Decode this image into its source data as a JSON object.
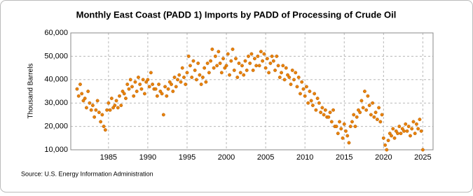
{
  "chart_data": {
    "type": "scatter",
    "title": "Monthly East Coast (PADD 1) Imports by PADD of Processing of Crude Oil",
    "y_label": "Thousand Barrels",
    "source": "Source: U.S. Energy Information Administration",
    "color": "#e8820c",
    "grid": true,
    "xlim": [
      1980.2,
      2026.3
    ],
    "xticks": [
      1985,
      1990,
      1995,
      2000,
      2005,
      2010,
      2015,
      2020,
      2025
    ],
    "ylim": [
      10000,
      60000
    ],
    "yticks": [
      {
        "value": 10000,
        "label": "10,000"
      },
      {
        "value": 20000,
        "label": "20,000"
      },
      {
        "value": 30000,
        "label": "30,000"
      },
      {
        "value": 40000,
        "label": "40,000"
      },
      {
        "value": 50000,
        "label": "50,000"
      },
      {
        "value": 60000,
        "label": "60,000"
      }
    ],
    "x": [
      1981,
      1981.2,
      1981.4,
      1981.6,
      1981.8,
      1982,
      1982.2,
      1982.4,
      1982.6,
      1982.8,
      1983,
      1983.2,
      1983.4,
      1983.6,
      1983.8,
      1984,
      1984.2,
      1984.4,
      1984.6,
      1984.8,
      1985,
      1985.2,
      1985.4,
      1985.6,
      1985.8,
      1986,
      1986.2,
      1986.4,
      1986.6,
      1986.8,
      1987,
      1987.2,
      1987.4,
      1987.6,
      1987.8,
      1988,
      1988.2,
      1988.4,
      1988.6,
      1988.8,
      1989,
      1989.2,
      1989.4,
      1989.6,
      1989.8,
      1990,
      1990.2,
      1990.4,
      1990.6,
      1990.8,
      1991,
      1991.2,
      1991.4,
      1991.6,
      1991.8,
      1992,
      1992.2,
      1992.4,
      1992.6,
      1992.8,
      1993,
      1993.2,
      1993.4,
      1993.6,
      1993.8,
      1994,
      1994.2,
      1994.4,
      1994.6,
      1994.8,
      1995,
      1995.2,
      1995.4,
      1995.6,
      1995.8,
      1996,
      1996.2,
      1996.4,
      1996.6,
      1996.8,
      1997,
      1997.2,
      1997.4,
      1997.6,
      1997.8,
      1998,
      1998.2,
      1998.4,
      1998.6,
      1998.8,
      1999,
      1999.2,
      1999.4,
      1999.6,
      1999.8,
      2000,
      2000.2,
      2000.4,
      2000.6,
      2000.8,
      2001,
      2001.2,
      2001.4,
      2001.6,
      2001.8,
      2002,
      2002.2,
      2002.4,
      2002.6,
      2002.8,
      2003,
      2003.2,
      2003.4,
      2003.6,
      2003.8,
      2004,
      2004.2,
      2004.4,
      2004.6,
      2004.8,
      2005,
      2005.2,
      2005.4,
      2005.6,
      2005.8,
      2006,
      2006.2,
      2006.4,
      2006.6,
      2006.8,
      2007,
      2007.2,
      2007.4,
      2007.6,
      2007.8,
      2008,
      2008.2,
      2008.4,
      2008.6,
      2008.8,
      2009,
      2009.2,
      2009.4,
      2009.6,
      2009.8,
      2010,
      2010.2,
      2010.4,
      2010.6,
      2010.8,
      2011,
      2011.2,
      2011.4,
      2011.6,
      2011.8,
      2012,
      2012.2,
      2012.4,
      2012.6,
      2012.8,
      2013,
      2013.2,
      2013.4,
      2013.6,
      2013.8,
      2014,
      2014.2,
      2014.4,
      2014.6,
      2014.8,
      2015,
      2015.2,
      2015.4,
      2015.6,
      2015.8,
      2016,
      2016.2,
      2016.4,
      2016.6,
      2016.8,
      2017,
      2017.2,
      2017.4,
      2017.6,
      2017.8,
      2018,
      2018.2,
      2018.4,
      2018.6,
      2018.8,
      2019,
      2019.2,
      2019.4,
      2019.6,
      2019.8,
      2020,
      2020.2,
      2020.4,
      2020.6,
      2020.8,
      2021,
      2021.2,
      2021.4,
      2021.6,
      2021.8,
      2022,
      2022.2,
      2022.4,
      2022.6,
      2022.8,
      2023,
      2023.2,
      2023.4,
      2023.6,
      2023.8,
      2024,
      2024.2,
      2024.4,
      2024.6,
      2024.8,
      2025
    ],
    "values": [
      36000,
      33000,
      38000,
      34000,
      31000,
      32000,
      28000,
      35000,
      30000,
      27000,
      29000,
      24000,
      27000,
      31000,
      26000,
      22000,
      25000,
      20000,
      18500,
      27000,
      30000,
      27000,
      32000,
      28000,
      29000,
      31000,
      28000,
      33000,
      29000,
      35000,
      34000,
      32000,
      38000,
      36000,
      40000,
      37000,
      33000,
      39000,
      35000,
      41000,
      38000,
      36000,
      40000,
      34000,
      39000,
      40000,
      37000,
      43000,
      38000,
      36000,
      36000,
      33000,
      38000,
      35000,
      34000,
      25000,
      37000,
      33000,
      36000,
      39000,
      38000,
      35000,
      41000,
      37000,
      40000,
      42000,
      39000,
      45000,
      41000,
      38000,
      43000,
      50000,
      46000,
      41000,
      48000,
      44000,
      40000,
      47000,
      42000,
      38000,
      41000,
      45000,
      39000,
      47000,
      43000,
      48000,
      53000,
      45000,
      50000,
      46000,
      52000,
      47000,
      43000,
      49000,
      45000,
      46000,
      51000,
      42000,
      48000,
      53000,
      44000,
      49000,
      41000,
      47000,
      43000,
      46000,
      42000,
      48000,
      44000,
      50000,
      47000,
      51000,
      44000,
      49000,
      46000,
      50000,
      46000,
      52000,
      48000,
      51000,
      45000,
      49000,
      43000,
      47000,
      50000,
      48000,
      44000,
      50000,
      46000,
      41000,
      43000,
      46000,
      40000,
      45000,
      42000,
      41000,
      38000,
      44000,
      40000,
      43000,
      37000,
      41000,
      34000,
      39000,
      36000,
      33000,
      37000,
      30000,
      35000,
      31000,
      29000,
      34000,
      27000,
      32000,
      30000,
      26000,
      28000,
      25000,
      27000,
      24000,
      24000,
      26000,
      22000,
      27000,
      20000,
      20000,
      17000,
      22000,
      19000,
      15000,
      21000,
      18000,
      16000,
      13000,
      20000,
      22000,
      25000,
      20000,
      24000,
      27000,
      26000,
      31000,
      28000,
      35000,
      27000,
      33000,
      29000,
      25000,
      30000,
      24000,
      26000,
      23000,
      28000,
      22000,
      25000,
      15000,
      12000,
      10000,
      14000,
      17000,
      16000,
      19000,
      15000,
      18000,
      17000,
      20000,
      17000,
      19000,
      18000,
      21000,
      18000,
      20000,
      16000,
      19000,
      22000,
      17000,
      21000,
      19000,
      23000,
      18000,
      10000
    ]
  }
}
